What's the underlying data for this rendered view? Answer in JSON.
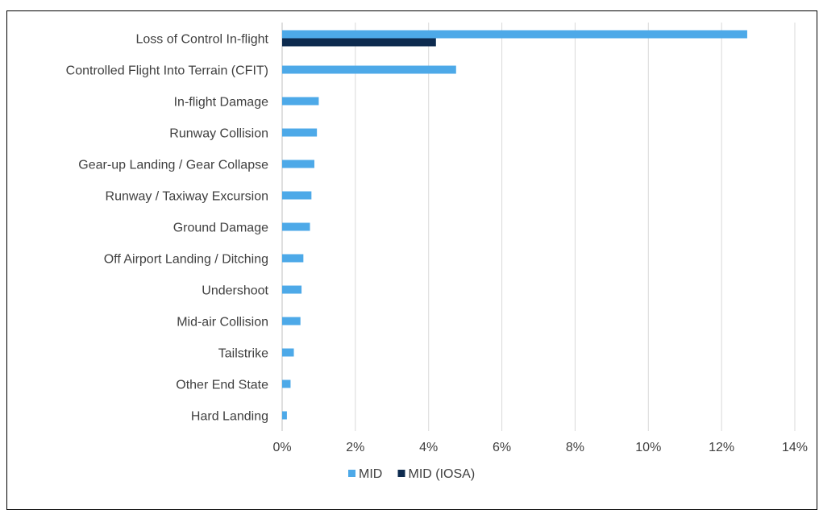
{
  "chart_data": {
    "type": "bar",
    "orientation": "horizontal",
    "categories": [
      "Loss of Control In-flight",
      "Controlled Flight Into Terrain (CFIT)",
      "In-flight Damage",
      "Runway Collision",
      "Gear-up Landing / Gear Collapse",
      "Runway / Taxiway Excursion",
      "Ground Damage",
      "Off Airport Landing / Ditching",
      "Undershoot",
      "Mid-air Collision",
      "Tailstrike",
      "Other End State",
      "Hard Landing"
    ],
    "series": [
      {
        "name": "MID",
        "color": "#4da9e8",
        "values": [
          12.7,
          4.75,
          1.0,
          0.95,
          0.88,
          0.8,
          0.76,
          0.58,
          0.53,
          0.5,
          0.32,
          0.23,
          0.13
        ]
      },
      {
        "name": "MID (IOSA)",
        "color": "#0d2b4f",
        "values": [
          4.2,
          0,
          0,
          0,
          0,
          0,
          0,
          0,
          0,
          0,
          0,
          0,
          0
        ]
      }
    ],
    "xlim": [
      0,
      14
    ],
    "xticks": [
      0,
      2,
      4,
      6,
      8,
      10,
      12,
      14
    ],
    "tick_format": "%",
    "grid": "vertical",
    "legend": "bottom",
    "title": "",
    "xlabel": "",
    "ylabel": ""
  }
}
